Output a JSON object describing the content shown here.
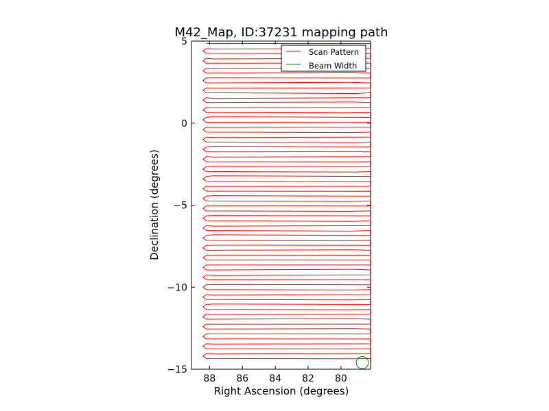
{
  "chart_data": {
    "type": "line",
    "title": "M42_Map, ID:37231 mapping path",
    "xlabel": "Right Ascension (degrees)",
    "ylabel": "Declination (degrees)",
    "xlim": [
      89.1,
      78.2
    ],
    "ylim": [
      -15,
      5
    ],
    "x_inverted": true,
    "xticks": [
      88,
      86,
      84,
      82,
      80
    ],
    "xtick_labels": [
      "88",
      "86",
      "84",
      "82",
      "80"
    ],
    "yticks": [
      5,
      0,
      -5,
      -10,
      -15
    ],
    "ytick_labels": [
      "5",
      "0",
      "−5",
      "−10",
      "−15"
    ],
    "grid": false,
    "legend_position": "top-right",
    "series": [
      {
        "name": "Scan Pattern",
        "color": "#ff0000",
        "pattern": "raster",
        "x_range": [
          88.2,
          78.2
        ],
        "dec_start": 4.85,
        "dec_end": -14.85,
        "row_step": 0.3,
        "left_turn_x": 88.4
      },
      {
        "name": "Beam Width",
        "color": "#008000",
        "shape": "circle",
        "center": [
          78.7,
          -14.6
        ],
        "radius_deg": 0.37
      }
    ]
  }
}
